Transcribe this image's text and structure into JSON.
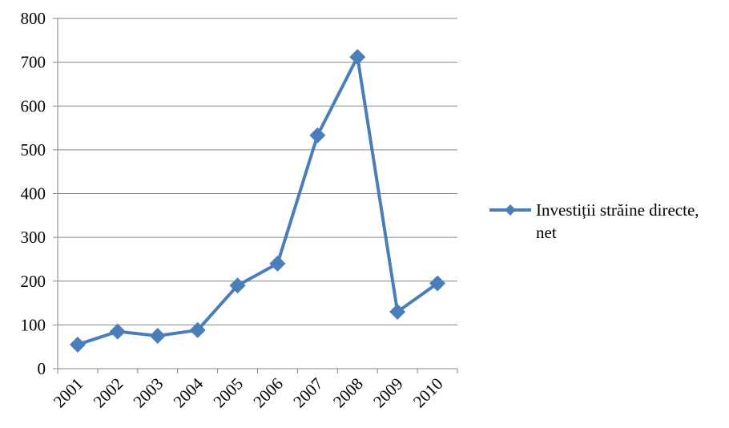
{
  "chart_data": {
    "type": "line",
    "title": "",
    "xlabel": "",
    "ylabel": "",
    "categories": [
      "2001",
      "2002",
      "2003",
      "2004",
      "2005",
      "2006",
      "2007",
      "2008",
      "2009",
      "2010"
    ],
    "series": [
      {
        "name": "Investiții străine directe, net",
        "values": [
          55,
          85,
          75,
          88,
          190,
          240,
          533,
          712,
          130,
          195
        ],
        "color": "#4a7ebb",
        "marker": "diamond"
      }
    ],
    "ylim": [
      0,
      800
    ],
    "yticks": [
      0,
      100,
      200,
      300,
      400,
      500,
      600,
      700,
      800
    ],
    "grid": true,
    "legend_position": "right"
  },
  "legend": {
    "line1": "Investiții străine directe,",
    "line2": "net"
  }
}
